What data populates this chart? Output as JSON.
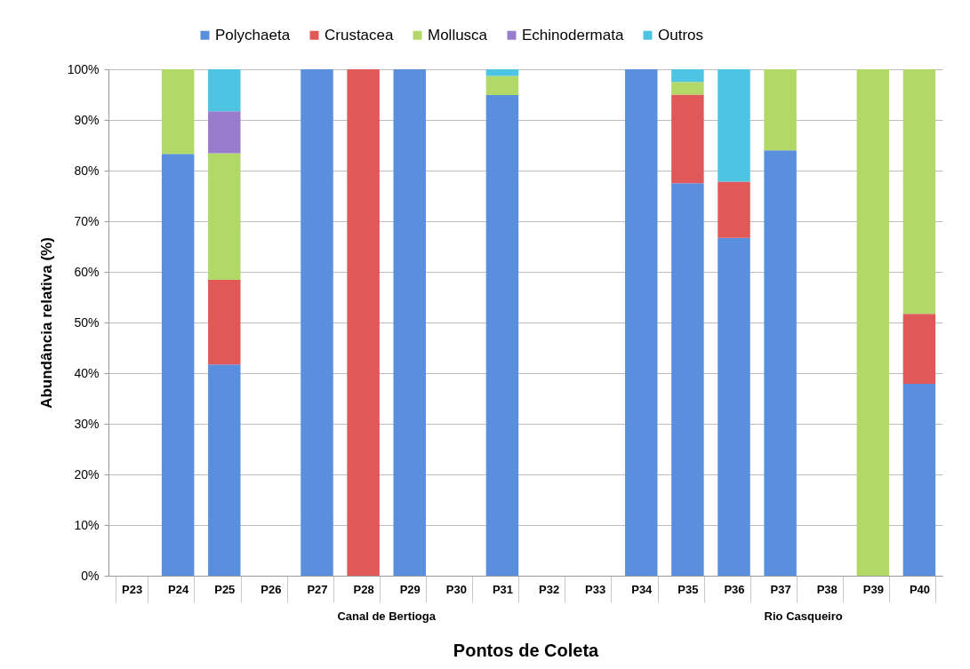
{
  "chart_data": {
    "type": "bar",
    "stacked": true,
    "xlabel": "Pontos de Coleta",
    "ylabel": "Abundância relativa (%)",
    "categories": [
      "P23",
      "P24",
      "P25",
      "P26",
      "P27",
      "P28",
      "P29",
      "P30",
      "P31",
      "P32",
      "P33",
      "P34",
      "P35",
      "P36",
      "P37",
      "P38",
      "P39",
      "P40"
    ],
    "series": [
      {
        "name": "Polychaeta",
        "color": "#5a8fde",
        "values": [
          null,
          83.3,
          41.7,
          null,
          100,
          null,
          100,
          null,
          94.9,
          null,
          null,
          100,
          77.5,
          66.7,
          84,
          null,
          null,
          37.9
        ]
      },
      {
        "name": "Crustacea",
        "color": "#e05858",
        "values": [
          null,
          null,
          16.7,
          null,
          null,
          100,
          null,
          null,
          null,
          null,
          null,
          null,
          17.5,
          11.1,
          null,
          null,
          null,
          13.8
        ]
      },
      {
        "name": "Mollusca",
        "color": "#b2d868",
        "values": [
          null,
          16.7,
          25,
          null,
          null,
          null,
          null,
          null,
          3.8,
          null,
          null,
          null,
          2.5,
          null,
          16,
          null,
          100,
          48.3
        ]
      },
      {
        "name": "Echinodermata",
        "color": "#9a7ccc",
        "values": [
          null,
          null,
          8.3,
          null,
          null,
          null,
          null,
          null,
          null,
          null,
          null,
          null,
          null,
          null,
          null,
          null,
          null,
          null
        ]
      },
      {
        "name": "Outros",
        "color": "#4cc4e2",
        "values": [
          null,
          null,
          8.3,
          null,
          null,
          null,
          null,
          null,
          1.3,
          null,
          null,
          null,
          2.5,
          22.2,
          null,
          null,
          null,
          null
        ]
      }
    ],
    "ylim": [
      0,
      100
    ],
    "yticks": [
      {
        "value": 0,
        "label": "0%"
      },
      {
        "value": 10,
        "label": "10%"
      },
      {
        "value": 20,
        "label": "20%"
      },
      {
        "value": 30,
        "label": "30%"
      },
      {
        "value": 40,
        "label": "40%"
      },
      {
        "value": 50,
        "label": "50%"
      },
      {
        "value": 60,
        "label": "60%"
      },
      {
        "value": 70,
        "label": "70%"
      },
      {
        "value": 80,
        "label": "80%"
      },
      {
        "value": 90,
        "label": "90%"
      },
      {
        "value": 100,
        "label": "100%"
      }
    ],
    "grid": "y",
    "legend": "top",
    "annotations": [
      "Canal de Bertioga",
      "Rio Casqueiro"
    ]
  }
}
